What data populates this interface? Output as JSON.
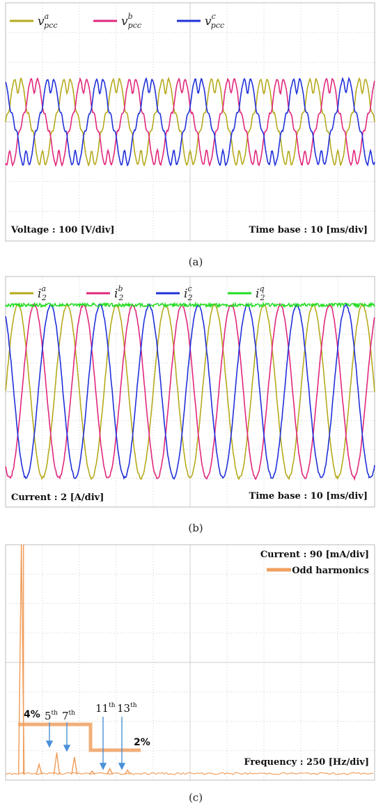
{
  "panels": [
    {
      "caption": "(a)",
      "scale_note": "Voltage : 100 [V/div]",
      "time_note": "Time base : 10 [ms/div]",
      "legend": [
        {
          "base": "v",
          "sub": "pcc",
          "sup": "a",
          "color": "#b5aa1c"
        },
        {
          "base": "v",
          "sub": "pcc",
          "sup": "b",
          "color": "#e0287c"
        },
        {
          "base": "v",
          "sub": "pcc",
          "sup": "c",
          "color": "#2030d8"
        }
      ]
    },
    {
      "caption": "(b)",
      "scale_note": "Current : 2 [A/div]",
      "time_note": "Time base : 10 [ms/div]",
      "legend": [
        {
          "base": "i",
          "sub": "2",
          "sup": "a",
          "color": "#b5aa1c"
        },
        {
          "base": "i",
          "sub": "2",
          "sup": "b",
          "color": "#e0287c"
        },
        {
          "base": "i",
          "sub": "2",
          "sup": "c",
          "color": "#2030d8"
        },
        {
          "base": "i",
          "sub": "2",
          "sup": "q",
          "color": "#22dd22"
        }
      ]
    },
    {
      "caption": "(c)",
      "scale_note": "Current : 90 [mA/div]",
      "freq_note": "Frequency : 250 [Hz/div]",
      "legend_label": "Odd harmonics",
      "legend_color": "#f0a060",
      "pct_high": "4%",
      "pct_low": "2%",
      "harmonic_labels": [
        {
          "n": "5",
          "suffix": "th"
        },
        {
          "n": "7",
          "suffix": "th"
        },
        {
          "n": "11",
          "suffix": "th"
        },
        {
          "n": "13",
          "suffix": "th"
        }
      ]
    }
  ],
  "chart_data": [
    {
      "type": "line",
      "title": "",
      "y_unit": "100 V/div",
      "x_unit": "10 ms/div",
      "series": [
        {
          "name": "v_pcc^a",
          "color": "#b5aa1c",
          "amplitude_div": 1.45,
          "phase_deg": 0
        },
        {
          "name": "v_pcc^b",
          "color": "#e0287c",
          "amplitude_div": 1.45,
          "phase_deg": -120
        },
        {
          "name": "v_pcc^c",
          "color": "#2030d8",
          "amplitude_div": 1.45,
          "phase_deg": 120
        }
      ],
      "cycles_shown": 7.5
    },
    {
      "type": "line",
      "title": "",
      "y_unit": "2 A/div",
      "x_unit": "10 ms/div",
      "series": [
        {
          "name": "i_2^a",
          "color": "#b5aa1c",
          "amplitude_div": 3.0,
          "phase_deg": 0
        },
        {
          "name": "i_2^b",
          "color": "#e0287c",
          "amplitude_div": 3.0,
          "phase_deg": -120
        },
        {
          "name": "i_2^c",
          "color": "#2030d8",
          "amplitude_div": 3.0,
          "phase_deg": 120
        },
        {
          "name": "i_2^q",
          "color": "#22dd22",
          "dc_level_div": 3.0
        }
      ],
      "cycles_shown": 7.5
    },
    {
      "type": "bar",
      "title": "",
      "x_unit": "250 Hz/div",
      "y_unit": "90 mA/div",
      "series": [
        {
          "name": "Odd harmonics",
          "color": "#f0a060",
          "points": [
            {
              "order": 1,
              "value_div": 8.0
            },
            {
              "order": 3,
              "value_div": 0.35
            },
            {
              "order": 5,
              "value_div": 0.75
            },
            {
              "order": 7,
              "value_div": 0.6
            },
            {
              "order": 9,
              "value_div": 0.12
            },
            {
              "order": 11,
              "value_div": 0.2
            },
            {
              "order": 13,
              "value_div": 0.15
            }
          ]
        }
      ],
      "thresholds": [
        {
          "label": "4%",
          "from_order": 1,
          "to_order": 9
        },
        {
          "label": "2%",
          "from_order": 9,
          "to_order": 15
        }
      ]
    }
  ]
}
